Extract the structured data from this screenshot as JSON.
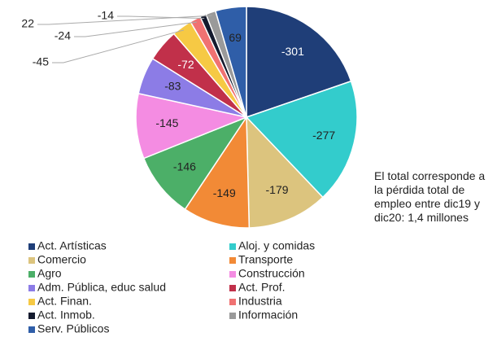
{
  "chart_data": {
    "type": "pie",
    "categories": [
      "Act. Artísticas",
      "Aloj. y comidas",
      "Comercio",
      "Transporte",
      "Agro",
      "Construcción",
      "Adm. Pública, educ salud",
      "Act. Prof.",
      "Act. Finan.",
      "Industria",
      "Act. Inmob.",
      "Información",
      "Serv. Públicos"
    ],
    "values": [
      -301,
      -277,
      -179,
      -149,
      -146,
      -145,
      -83,
      -72,
      -45,
      -24,
      -14,
      22,
      69
    ],
    "colors": [
      "#1f3e78",
      "#33cccc",
      "#dcc47e",
      "#f28a36",
      "#4caf68",
      "#f48ce2",
      "#8c7ce6",
      "#c1304a",
      "#f6c944",
      "#f07272",
      "#141a2e",
      "#9a9a9a",
      "#2f5ea8"
    ],
    "annotation": "El total corresponde a la pérdida total de empleo entre dic19 y dic20: 1,4 millones"
  }
}
